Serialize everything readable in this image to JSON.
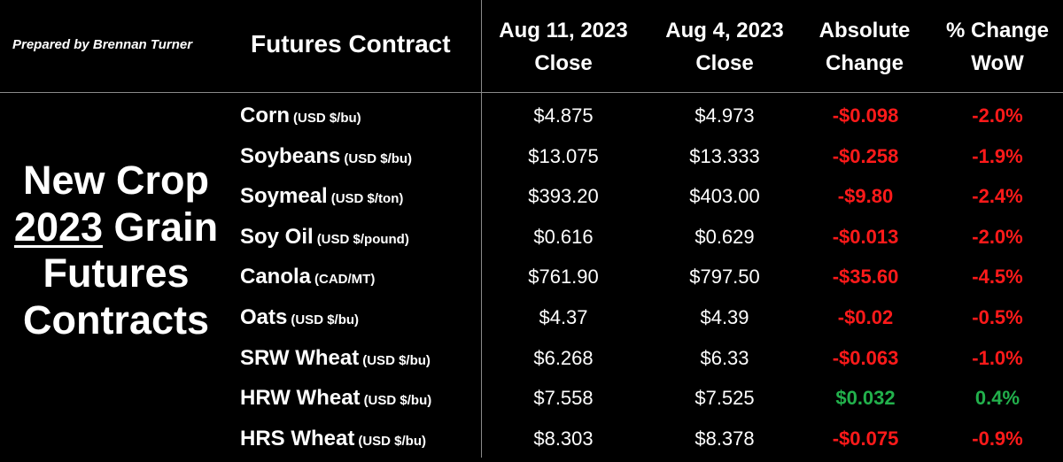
{
  "credit": "Prepared by Brennan Turner",
  "header": {
    "contract_label": "Futures Contract",
    "col1": [
      "Aug 11, 2023",
      "Close"
    ],
    "col2": [
      "Aug 4, 2023",
      "Close"
    ],
    "col3": [
      "Absolute",
      "Change"
    ],
    "col4": [
      "% Change",
      "WoW"
    ]
  },
  "side_title": {
    "line1": "New Crop",
    "line2_year": "2023",
    "line2_rest": " Grain",
    "line3": "Futures",
    "line4": "Contracts"
  },
  "colors": {
    "negative": "#ff1a1a",
    "positive": "#22b14c",
    "background": "#000000",
    "text": "#ffffff"
  },
  "rows": [
    {
      "name": "Corn",
      "unit": "(USD $/bu)",
      "aug11": "$4.875",
      "aug4": "$4.973",
      "abs": "-$0.098",
      "pct": "-2.0%",
      "dir": "neg"
    },
    {
      "name": "Soybeans",
      "unit": "(USD $/bu)",
      "aug11": "$13.075",
      "aug4": "$13.333",
      "abs": "-$0.258",
      "pct": "-1.9%",
      "dir": "neg"
    },
    {
      "name": "Soymeal",
      "unit": "(USD $/ton)",
      "aug11": "$393.20",
      "aug4": "$403.00",
      "abs": "-$9.80",
      "pct": "-2.4%",
      "dir": "neg"
    },
    {
      "name": "Soy Oil",
      "unit": "(USD $/pound)",
      "aug11": "$0.616",
      "aug4": "$0.629",
      "abs": "-$0.013",
      "pct": "-2.0%",
      "dir": "neg"
    },
    {
      "name": "Canola",
      "unit": "(CAD/MT)",
      "aug11": "$761.90",
      "aug4": "$797.50",
      "abs": "-$35.60",
      "pct": "-4.5%",
      "dir": "neg"
    },
    {
      "name": "Oats",
      "unit": "(USD $/bu)",
      "aug11": "$4.37",
      "aug4": "$4.39",
      "abs": "-$0.02",
      "pct": "-0.5%",
      "dir": "neg"
    },
    {
      "name": "SRW Wheat",
      "unit": "(USD $/bu)",
      "aug11": "$6.268",
      "aug4": "$6.33",
      "abs": "-$0.063",
      "pct": "-1.0%",
      "dir": "neg"
    },
    {
      "name": "HRW Wheat",
      "unit": "(USD $/bu)",
      "aug11": "$7.558",
      "aug4": "$7.525",
      "abs": "$0.032",
      "pct": "0.4%",
      "dir": "pos"
    },
    {
      "name": "HRS Wheat",
      "unit": "(USD $/bu)",
      "aug11": "$8.303",
      "aug4": "$8.378",
      "abs": "-$0.075",
      "pct": "-0.9%",
      "dir": "neg"
    }
  ]
}
